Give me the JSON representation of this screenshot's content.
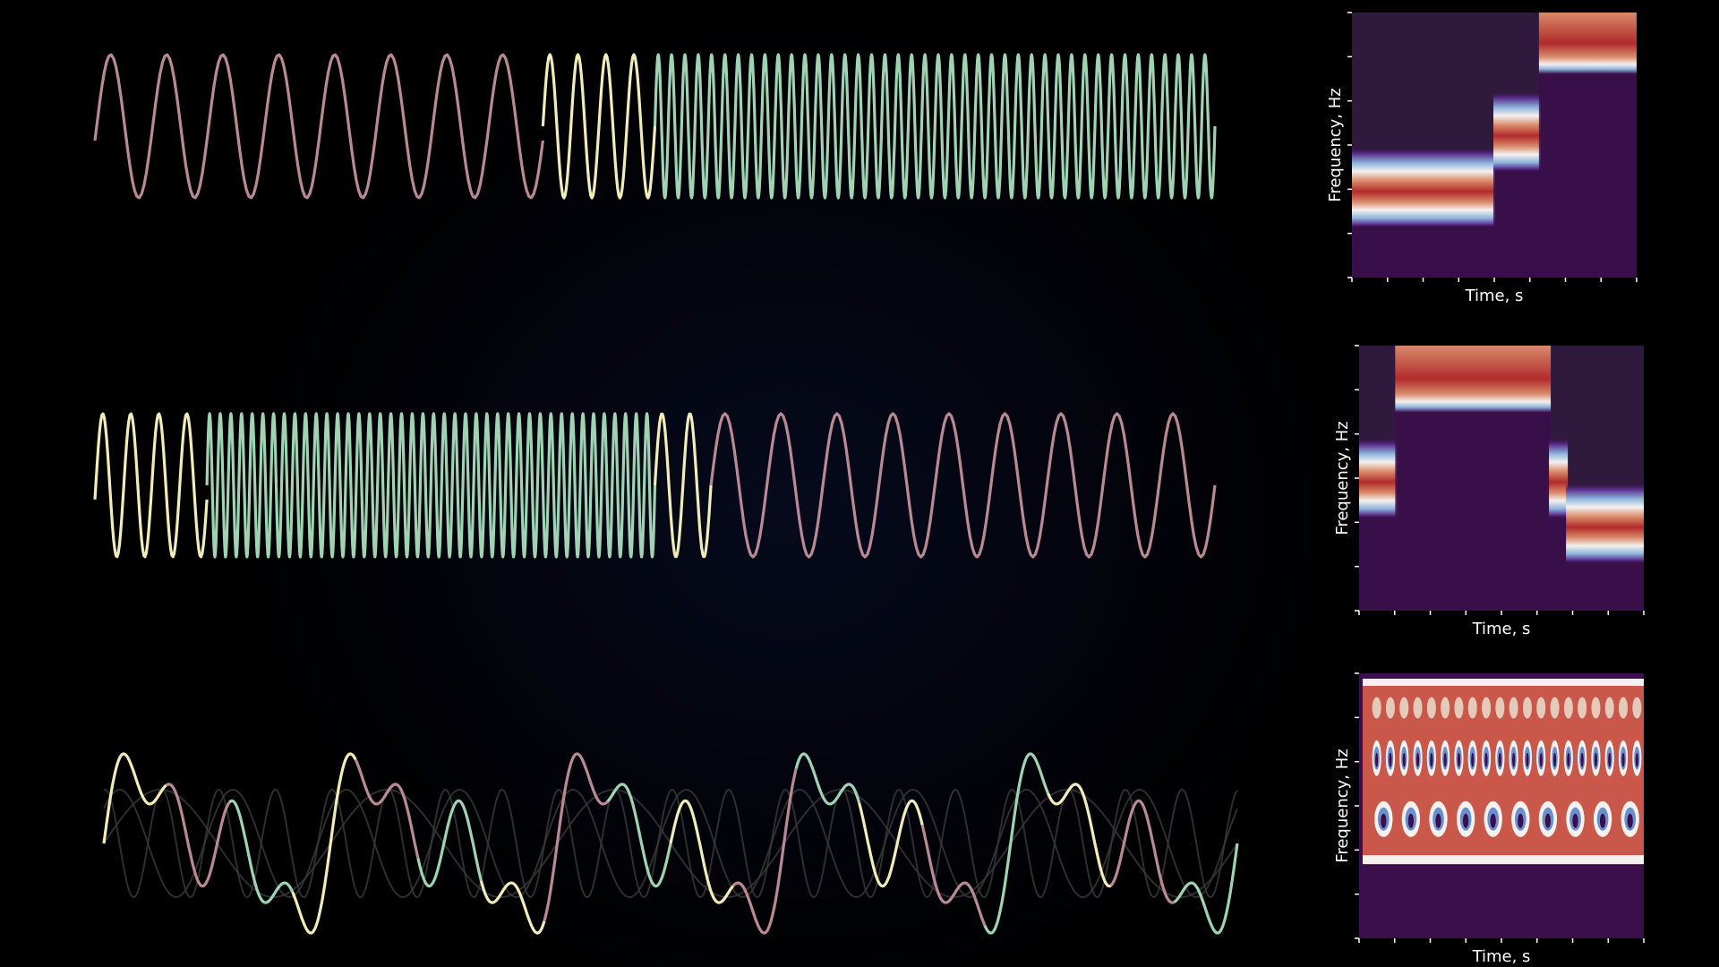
{
  "colors": {
    "background": "#000000",
    "rose": "#b98a94",
    "cream": "#f2ecbb",
    "green": "#9fd3b3",
    "ghost": "#3a3a3a",
    "axes": "#ffffff"
  },
  "chart_data": [
    {
      "type": "line",
      "panel": "signal-1",
      "series": [
        {
          "color_key": "rose",
          "cycles": 8,
          "t_range": [
            0,
            0.4
          ]
        },
        {
          "color_key": "cream",
          "cycles": 4,
          "t_range": [
            0.4,
            0.5
          ]
        },
        {
          "color_key": "green",
          "cycles": 42,
          "t_range": [
            0.5,
            1.0
          ]
        }
      ]
    },
    {
      "type": "heatmap",
      "panel": "spectrogram-1",
      "xlabel": "Time, s",
      "ylabel": "Frequency, Hz",
      "colormap": "twilight_shifted",
      "segments": [
        {
          "t_range": [
            0,
            0.5
          ],
          "band_level": 0.34
        },
        {
          "t_range": [
            0.5,
            0.66
          ],
          "band_level": 0.55
        },
        {
          "t_range": [
            0.66,
            1.0
          ],
          "band_level": 0.92
        }
      ]
    },
    {
      "type": "line",
      "panel": "signal-2",
      "series": [
        {
          "color_key": "cream",
          "cycles": 4,
          "t_range": [
            0,
            0.1
          ]
        },
        {
          "color_key": "green",
          "cycles": 42,
          "t_range": [
            0.1,
            0.5
          ]
        },
        {
          "color_key": "cream",
          "cycles": 2,
          "t_range": [
            0.5,
            0.55
          ]
        },
        {
          "color_key": "rose",
          "cycles": 9,
          "t_range": [
            0.55,
            1.0
          ]
        }
      ]
    },
    {
      "type": "heatmap",
      "panel": "spectrogram-2",
      "xlabel": "Time, s",
      "ylabel": "Frequency, Hz",
      "colormap": "twilight_shifted",
      "segments": [
        {
          "t_range": [
            0,
            0.13
          ],
          "band_level": 0.5
        },
        {
          "t_range": [
            0.13,
            0.67
          ],
          "band_level": 0.9
        },
        {
          "t_range": [
            0.67,
            0.73
          ],
          "band_level": 0.5
        },
        {
          "t_range": [
            0.73,
            1.0
          ],
          "band_level": 0.33
        }
      ]
    },
    {
      "type": "line",
      "panel": "signal-3",
      "description_of_mix": "sum of three sinusoids",
      "components": [
        {
          "cycles": 5,
          "amplitude": 0.45
        },
        {
          "cycles": 10,
          "amplitude": 0.35
        },
        {
          "cycles": 20,
          "amplitude": 0.3
        }
      ],
      "segment_colors": [
        "cream",
        "rose",
        "green"
      ]
    },
    {
      "type": "heatmap",
      "panel": "spectrogram-3",
      "xlabel": "Time, s",
      "ylabel": "Frequency, Hz",
      "colormap": "twilight_shifted",
      "bands": [
        {
          "level": 0.87,
          "ripples": 20
        },
        {
          "level": 0.68,
          "ripples": 20
        },
        {
          "level": 0.45,
          "ripples": 10
        }
      ]
    }
  ]
}
